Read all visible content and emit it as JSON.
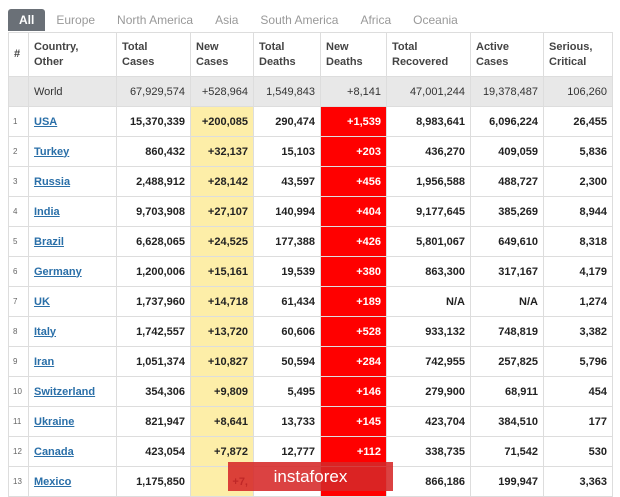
{
  "tabs": [
    "All",
    "Europe",
    "North America",
    "Asia",
    "South America",
    "Africa",
    "Oceania"
  ],
  "table": {
    "headers": [
      [
        "#"
      ],
      [
        "Country,",
        "Other"
      ],
      [
        "Total",
        "Cases"
      ],
      [
        "New",
        "Cases"
      ],
      [
        "Total",
        "Deaths"
      ],
      [
        "New",
        "Deaths"
      ],
      [
        "Total",
        "Recovered"
      ],
      [
        "Active",
        "Cases"
      ],
      [
        "Serious,",
        "Critical"
      ]
    ],
    "world": [
      "World",
      "67,929,574",
      "+528,964",
      "1,549,843",
      "+8,141",
      "47,001,244",
      "19,378,487",
      "106,260"
    ],
    "rows": [
      [
        "1",
        "USA",
        "15,370,339",
        "+200,085",
        "290,474",
        "+1,539",
        "8,983,641",
        "6,096,224",
        "26,455"
      ],
      [
        "2",
        "Turkey",
        "860,432",
        "+32,137",
        "15,103",
        "+203",
        "436,270",
        "409,059",
        "5,836"
      ],
      [
        "3",
        "Russia",
        "2,488,912",
        "+28,142",
        "43,597",
        "+456",
        "1,956,588",
        "488,727",
        "2,300"
      ],
      [
        "4",
        "India",
        "9,703,908",
        "+27,107",
        "140,994",
        "+404",
        "9,177,645",
        "385,269",
        "8,944"
      ],
      [
        "5",
        "Brazil",
        "6,628,065",
        "+24,525",
        "177,388",
        "+426",
        "5,801,067",
        "649,610",
        "8,318"
      ],
      [
        "6",
        "Germany",
        "1,200,006",
        "+15,161",
        "19,539",
        "+380",
        "863,300",
        "317,167",
        "4,179"
      ],
      [
        "7",
        "UK",
        "1,737,960",
        "+14,718",
        "61,434",
        "+189",
        "N/A",
        "N/A",
        "1,274"
      ],
      [
        "8",
        "Italy",
        "1,742,557",
        "+13,720",
        "60,606",
        "+528",
        "933,132",
        "748,819",
        "3,382"
      ],
      [
        "9",
        "Iran",
        "1,051,374",
        "+10,827",
        "50,594",
        "+284",
        "742,955",
        "257,825",
        "5,796"
      ],
      [
        "10",
        "Switzerland",
        "354,306",
        "+9,809",
        "5,495",
        "+146",
        "279,900",
        "68,911",
        "454"
      ],
      [
        "11",
        "Ukraine",
        "821,947",
        "+8,641",
        "13,733",
        "+145",
        "423,704",
        "384,510",
        "177"
      ],
      [
        "12",
        "Canada",
        "423,054",
        "+7,872",
        "12,777",
        "+112",
        "338,735",
        "71,542",
        "530"
      ],
      [
        "13",
        "Mexico",
        "1,175,850",
        "+7,",
        null,
        null,
        "866,186",
        "199,947",
        "3,363"
      ]
    ]
  },
  "watermark": "instaforex"
}
